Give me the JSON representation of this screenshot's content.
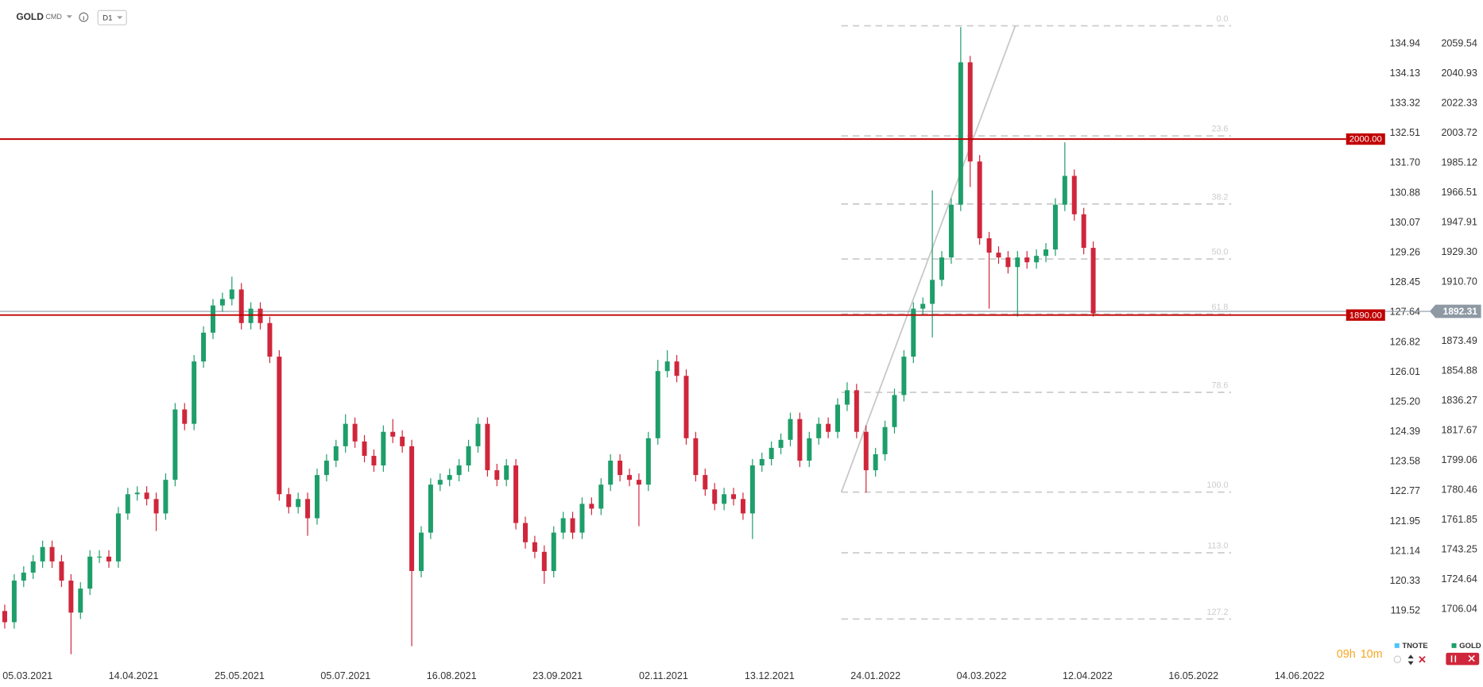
{
  "header": {
    "symbol": "GOLD",
    "market": "CMD",
    "interval": "D1"
  },
  "countdown": {
    "hours": "09h",
    "minutes": "10m"
  },
  "legend": [
    {
      "name": "TNOTE",
      "color": "#4fc3f7"
    },
    {
      "name": "GOLD",
      "color": "#1e9e6a"
    }
  ],
  "chart_data": {
    "type": "candlestick",
    "up_color": "#1e9e6a",
    "down_color": "#d0263b",
    "x_labels": [
      "05.03.2021",
      "14.04.2021",
      "25.05.2021",
      "05.07.2021",
      "16.08.2021",
      "23.09.2021",
      "02.11.2021",
      "13.12.2021",
      "24.01.2022",
      "04.03.2022",
      "12.04.2022",
      "16.05.2022",
      "14.06.2022"
    ],
    "open": [
      1705,
      1698,
      1724,
      1729,
      1736,
      1745,
      1736,
      1724,
      1704,
      1719,
      1739,
      1739,
      1736,
      1766,
      1778,
      1779,
      1775,
      1766,
      1787,
      1831,
      1822,
      1861,
      1879,
      1896,
      1900,
      1906,
      1885,
      1894,
      1885,
      1864,
      1778,
      1770,
      1775,
      1763,
      1790,
      1799,
      1808,
      1822,
      1811,
      1802,
      1796,
      1817,
      1814,
      1808,
      1730,
      1754,
      1784,
      1787,
      1790,
      1796,
      1808,
      1822,
      1793,
      1787,
      1796,
      1760,
      1748,
      1742,
      1730,
      1754,
      1763,
      1754,
      1772,
      1769,
      1784,
      1799,
      1790,
      1787,
      1784,
      1813,
      1855,
      1861,
      1852,
      1813,
      1790,
      1781,
      1772,
      1778,
      1775,
      1766,
      1796,
      1800,
      1807,
      1812,
      1825,
      1799,
      1813,
      1822,
      1817,
      1834,
      1843,
      1817,
      1793,
      1803,
      1820,
      1840,
      1864,
      1894,
      1897,
      1912,
      1926,
      1959,
      2048,
      1986,
      1938,
      1929,
      1926,
      1920,
      1926,
      1923,
      1927,
      1931,
      1959,
      1977,
      1953,
      1932
    ],
    "high": [
      1709,
      1728,
      1733,
      1740,
      1749,
      1749,
      1740,
      1728,
      1723,
      1743,
      1743,
      1743,
      1770,
      1782,
      1783,
      1783,
      1779,
      1791,
      1835,
      1835,
      1865,
      1883,
      1900,
      1904,
      1914,
      1910,
      1898,
      1898,
      1889,
      1868,
      1782,
      1779,
      1779,
      1794,
      1803,
      1812,
      1828,
      1826,
      1815,
      1806,
      1821,
      1825,
      1818,
      1812,
      1758,
      1788,
      1791,
      1794,
      1800,
      1812,
      1826,
      1826,
      1797,
      1800,
      1800,
      1764,
      1752,
      1746,
      1758,
      1767,
      1767,
      1776,
      1776,
      1788,
      1803,
      1803,
      1794,
      1791,
      1817,
      1862,
      1868,
      1865,
      1856,
      1817,
      1794,
      1785,
      1782,
      1782,
      1779,
      1800,
      1804,
      1811,
      1816,
      1829,
      1829,
      1817,
      1826,
      1826,
      1838,
      1848,
      1847,
      1821,
      1807,
      1824,
      1844,
      1868,
      1898,
      1901,
      1968,
      1930,
      1963,
      2070,
      2052,
      1990,
      1942,
      1933,
      1930,
      1930,
      1930,
      1931,
      1935,
      1963,
      1998,
      1981,
      1957,
      1936
    ],
    "low": [
      1694,
      1694,
      1720,
      1725,
      1732,
      1732,
      1720,
      1678,
      1700,
      1715,
      1735,
      1732,
      1732,
      1762,
      1774,
      1771,
      1755,
      1762,
      1783,
      1818,
      1818,
      1857,
      1875,
      1892,
      1896,
      1881,
      1881,
      1881,
      1860,
      1774,
      1766,
      1766,
      1752,
      1759,
      1786,
      1795,
      1804,
      1807,
      1798,
      1792,
      1792,
      1810,
      1804,
      1683,
      1726,
      1750,
      1780,
      1783,
      1786,
      1792,
      1804,
      1789,
      1783,
      1783,
      1756,
      1744,
      1738,
      1722,
      1726,
      1750,
      1750,
      1750,
      1765,
      1765,
      1780,
      1786,
      1783,
      1758,
      1780,
      1809,
      1851,
      1848,
      1809,
      1786,
      1777,
      1768,
      1768,
      1771,
      1762,
      1750,
      1792,
      1796,
      1803,
      1808,
      1795,
      1795,
      1809,
      1813,
      1813,
      1830,
      1813,
      1779,
      1789,
      1799,
      1816,
      1836,
      1860,
      1890,
      1876,
      1908,
      1922,
      1955,
      1970,
      1934,
      1894,
      1922,
      1916,
      1889,
      1919,
      1919,
      1923,
      1927,
      1955,
      1949,
      1928,
      1889
    ],
    "close": [
      1698,
      1724,
      1729,
      1736,
      1745,
      1736,
      1724,
      1704,
      1719,
      1739,
      1739,
      1736,
      1766,
      1778,
      1779,
      1775,
      1766,
      1787,
      1831,
      1822,
      1861,
      1879,
      1896,
      1900,
      1906,
      1885,
      1894,
      1885,
      1864,
      1778,
      1770,
      1775,
      1763,
      1790,
      1799,
      1808,
      1822,
      1811,
      1802,
      1796,
      1817,
      1814,
      1808,
      1730,
      1754,
      1784,
      1787,
      1790,
      1796,
      1808,
      1822,
      1793,
      1787,
      1796,
      1760,
      1748,
      1742,
      1730,
      1754,
      1763,
      1754,
      1772,
      1769,
      1784,
      1799,
      1790,
      1787,
      1784,
      1813,
      1855,
      1861,
      1852,
      1813,
      1790,
      1781,
      1772,
      1778,
      1775,
      1766,
      1796,
      1800,
      1807,
      1812,
      1825,
      1799,
      1813,
      1822,
      1817,
      1834,
      1843,
      1817,
      1793,
      1803,
      1820,
      1840,
      1864,
      1894,
      1897,
      1912,
      1926,
      1959,
      2048,
      1986,
      1938,
      1929,
      1926,
      1920,
      1926,
      1923,
      1927,
      1931,
      1959,
      1977,
      1953,
      1932,
      1891
    ],
    "ylim": [
      1671.2,
      2086.9
    ],
    "yticks": [
      2059.54,
      2040.93,
      2022.33,
      2003.72,
      1985.12,
      1966.51,
      1947.91,
      {
        "value": 1929.3,
        "label": "1929.30"
      },
      {
        "value": 1910.7,
        "label": "1910.70"
      },
      1873.49,
      1854.88,
      1836.27,
      1817.67,
      1799.06,
      1780.46,
      1761.85,
      1743.25,
      1724.64,
      1706.04
    ],
    "y2lim": [
      118.05,
      136.13
    ],
    "y2ticks": [
      134.94,
      134.13,
      133.32,
      132.51,
      {
        "value": 131.7,
        "label": "131.70"
      },
      130.88,
      130.07,
      129.26,
      128.45,
      127.64,
      126.82,
      126.01,
      {
        "value": 125.2,
        "label": "125.20"
      },
      124.39,
      123.58,
      122.77,
      121.95,
      121.14,
      120.33,
      119.52
    ],
    "levels": [
      {
        "value": 2000,
        "label": "2000.00",
        "color": "#c00000"
      },
      {
        "value": 1890,
        "label": "1890.00",
        "color": "#c00000"
      }
    ],
    "last_price": {
      "value": 1892.31,
      "color": "#8e99a4"
    },
    "fib": {
      "low": 1779.3,
      "high": 2070.8,
      "levels": [
        {
          "value": 0,
          "label": "0.0"
        },
        23.6,
        38.2,
        {
          "value": 50,
          "label": "50.0"
        },
        61.8,
        78.6,
        {
          "value": 100,
          "label": "100.0"
        },
        {
          "value": 113,
          "label": "113.0"
        },
        127.2
      ]
    }
  }
}
